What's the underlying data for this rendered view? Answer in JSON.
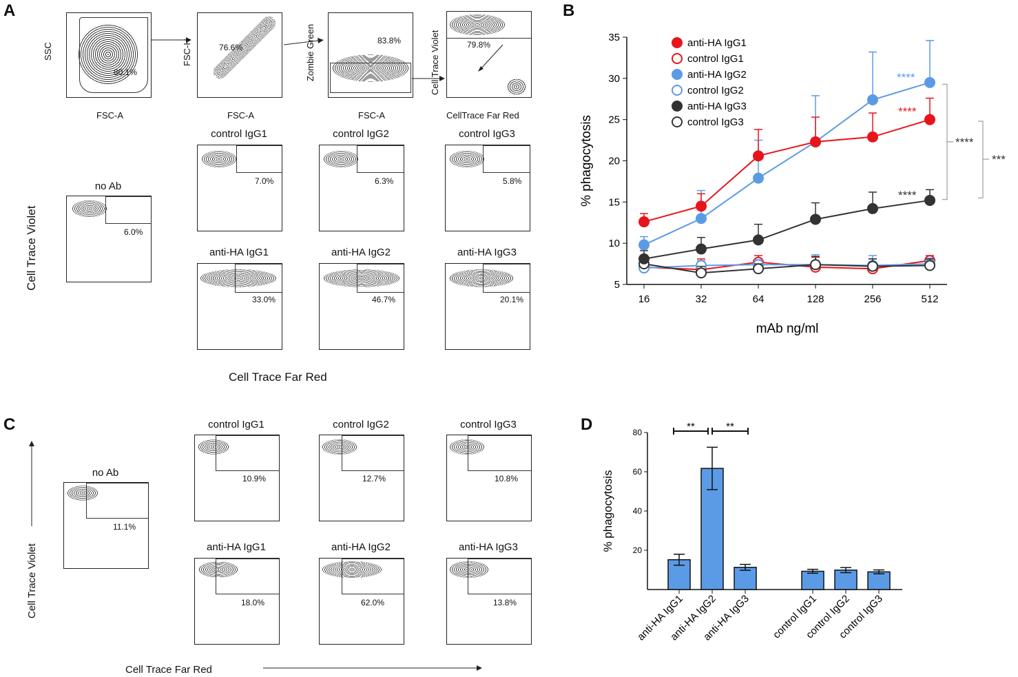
{
  "panels": {
    "a": "A",
    "b": "B",
    "c": "C",
    "d": "D"
  },
  "panel_a": {
    "gating": [
      {
        "xlabel": "FSC-A",
        "ylabel": "SSC",
        "pct": "80.1%"
      },
      {
        "xlabel": "FSC-A",
        "ylabel": "FSC-H",
        "pct": "76.6%"
      },
      {
        "xlabel": "FSC-A",
        "ylabel": "Zombie Green",
        "pct": "83.8%"
      },
      {
        "xlabel": "CellTrace Far Red",
        "ylabel": "Cell Trace Violet",
        "pct": "79.8%"
      }
    ],
    "y_axis_label": "Cell Trace Violet",
    "x_axis_label": "Cell Trace Far Red",
    "plots": [
      {
        "title": "no Ab",
        "pct": "6.0%"
      },
      {
        "title": "control IgG1",
        "pct": "7.0%"
      },
      {
        "title": "control IgG2",
        "pct": "6.3%"
      },
      {
        "title": "control IgG3",
        "pct": "5.8%"
      },
      {
        "title": "anti-HA IgG1",
        "pct": "33.0%"
      },
      {
        "title": "anti-HA IgG2",
        "pct": "46.7%"
      },
      {
        "title": "anti-HA IgG3",
        "pct": "20.1%"
      }
    ]
  },
  "panel_c": {
    "y_axis_label": "Cell Trace Violet",
    "x_axis_label": "Cell Trace Far Red",
    "plots": [
      {
        "title": "no Ab",
        "pct": "11.1%"
      },
      {
        "title": "control IgG1",
        "pct": "10.9%"
      },
      {
        "title": "control IgG2",
        "pct": "12.7%"
      },
      {
        "title": "control IgG3",
        "pct": "10.8%"
      },
      {
        "title": "anti-HA IgG1",
        "pct": "18.0%"
      },
      {
        "title": "anti-HA IgG2",
        "pct": "62.0%"
      },
      {
        "title": "anti-HA IgG3",
        "pct": "13.8%"
      }
    ]
  },
  "chart_data": [
    {
      "type": "line",
      "panel": "B",
      "xlabel": "mAb ng/ml",
      "ylabel": "% phagocytosis",
      "x": [
        16,
        32,
        64,
        128,
        256,
        512
      ],
      "x_tick_labels": [
        "16",
        "32",
        "64",
        "128",
        "256",
        "512"
      ],
      "ylim": [
        5,
        35
      ],
      "y_ticks": [
        5,
        10,
        15,
        20,
        25,
        30,
        35
      ],
      "series": [
        {
          "name": "anti-HA IgG1",
          "color": "#e8141b",
          "filled": true,
          "values": [
            12.6,
            14.5,
            20.6,
            22.3,
            22.9,
            25.0
          ],
          "err": [
            1.0,
            1.5,
            3.2,
            3.0,
            2.9,
            2.6
          ]
        },
        {
          "name": "control IgG1",
          "color": "#e8141b",
          "filled": false,
          "values": [
            7.1,
            6.8,
            7.7,
            7.1,
            6.9,
            7.9
          ],
          "err": [
            1.1,
            1.3,
            0.8,
            1.2,
            1.2,
            0.6
          ]
        },
        {
          "name": "anti-HA IgG2",
          "color": "#5b9be6",
          "filled": true,
          "values": [
            9.8,
            13.0,
            17.9,
            22.3,
            27.4,
            29.5
          ],
          "err": [
            1.0,
            3.4,
            4.6,
            5.6,
            5.8,
            5.1
          ]
        },
        {
          "name": "control IgG2",
          "color": "#5b9be6",
          "filled": false,
          "values": [
            7.0,
            7.3,
            7.4,
            7.4,
            7.3,
            7.5
          ],
          "err": [
            0.9,
            0.6,
            0.6,
            1.2,
            1.2,
            0.7
          ]
        },
        {
          "name": "anti-HA IgG3",
          "color": "#333333",
          "filled": true,
          "values": [
            8.1,
            9.3,
            10.4,
            12.9,
            14.2,
            15.2
          ],
          "err": [
            1.0,
            1.4,
            1.9,
            2.0,
            2.0,
            1.3
          ]
        },
        {
          "name": "control IgG3",
          "color": "#333333",
          "filled": false,
          "values": [
            7.5,
            6.4,
            6.9,
            7.4,
            7.2,
            7.3
          ],
          "err": [
            0.8,
            0.8,
            0.6,
            1.0,
            0.9,
            0.8
          ]
        }
      ],
      "annotations": [
        {
          "text": "****",
          "color": "#5b9be6",
          "near": "anti-HA IgG2 at 512"
        },
        {
          "text": "****",
          "color": "#e8141b",
          "near": "anti-HA IgG1 at 512"
        },
        {
          "text": "****",
          "color": "#333333",
          "near": "anti-HA IgG3 at 512"
        },
        {
          "text": "****",
          "color": "#333333",
          "bracket": "IgG2 vs IgG3"
        },
        {
          "text": "***",
          "color": "#333333",
          "bracket": "IgG1 vs IgG3"
        }
      ]
    },
    {
      "type": "bar",
      "panel": "D",
      "ylabel": "% phagocytosis",
      "ylim": [
        0,
        80
      ],
      "y_ticks": [
        20,
        40,
        60,
        80
      ],
      "categories": [
        "anti-HA IgG1",
        "anti-HA IgG2",
        "anti-HA IgG3",
        "control IgG1",
        "control IgG2",
        "control IgG3"
      ],
      "values": [
        15.2,
        61.7,
        11.3,
        9.3,
        9.9,
        9.0
      ],
      "err": [
        2.8,
        10.8,
        1.5,
        1.0,
        1.3,
        1.0
      ],
      "bar_color": "#5b9be6",
      "significance": [
        {
          "text": "**",
          "between": [
            "anti-HA IgG1",
            "anti-HA IgG2"
          ]
        },
        {
          "text": "**",
          "between": [
            "anti-HA IgG2",
            "anti-HA IgG3"
          ]
        }
      ]
    }
  ]
}
